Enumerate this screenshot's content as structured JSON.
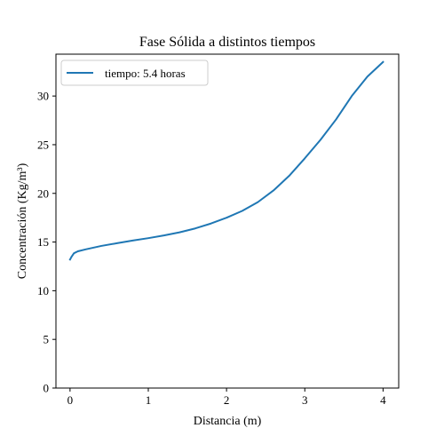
{
  "chart_data": {
    "type": "line",
    "title": "Fase Sólida a distintos tiempos",
    "xlabel": "Distancia (m)",
    "ylabel": "Concentración (Kg/m³)",
    "xlim": [
      -0.18,
      4.2
    ],
    "ylim": [
      0,
      34.3
    ],
    "xticks": [
      0,
      1,
      2,
      3,
      4
    ],
    "yticks": [
      0,
      5,
      10,
      15,
      20,
      25,
      30
    ],
    "grid": false,
    "legend_position": "top-left",
    "colors": {
      "series": "#1f77b4",
      "axes": "#000000",
      "background": "#ffffff"
    },
    "series": [
      {
        "name": "tiempo: 5.4 horas",
        "x": [
          0,
          0.02,
          0.05,
          0.1,
          0.2,
          0.4,
          0.6,
          0.8,
          1.0,
          1.2,
          1.4,
          1.6,
          1.8,
          2.0,
          2.2,
          2.4,
          2.6,
          2.8,
          3.0,
          3.2,
          3.4,
          3.6,
          3.8,
          4.0
        ],
        "y": [
          13.2,
          13.5,
          13.85,
          14.05,
          14.25,
          14.6,
          14.88,
          15.15,
          15.4,
          15.68,
          16.0,
          16.4,
          16.9,
          17.5,
          18.2,
          19.1,
          20.3,
          21.8,
          23.6,
          25.5,
          27.6,
          30.0,
          32.0,
          33.5
        ]
      }
    ]
  }
}
